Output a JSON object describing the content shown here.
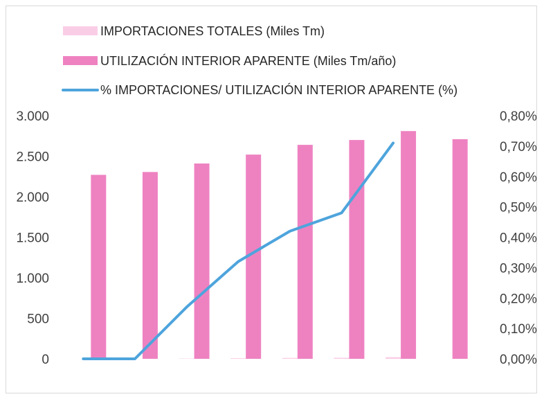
{
  "chart_data": {
    "type": "bar+line",
    "title": "",
    "categories": [
      "",
      "",
      "",
      "",
      "",
      "",
      "",
      ""
    ],
    "series": [
      {
        "name": "IMPORTACIONES TOTALES (Miles Tm)",
        "type": "bar",
        "axis": "left",
        "color": "#f9cde5",
        "values": [
          0,
          0,
          4,
          8,
          11,
          13,
          20,
          0
        ]
      },
      {
        "name": "UTILIZACIÓN INTERIOR APARENTE (Miles Tm/año)",
        "type": "bar",
        "axis": "left",
        "color": "#ee82c1",
        "values": [
          2270,
          2305,
          2410,
          2520,
          2640,
          2700,
          2810,
          2710
        ]
      },
      {
        "name": "% IMPORTACIONES/ UTILIZACIÓN INTERIOR APARENTE (%)",
        "type": "line",
        "axis": "right",
        "color": "#4ea4dc",
        "values": [
          0.0,
          0.0,
          0.17,
          0.32,
          0.42,
          0.48,
          0.71,
          null
        ]
      }
    ],
    "y_left": {
      "min": 0,
      "max": 3000,
      "ticks": [
        "0",
        "500",
        "1.000",
        "1.500",
        "2.000",
        "2.500",
        "3.000"
      ],
      "tick_values": [
        0,
        500,
        1000,
        1500,
        2000,
        2500,
        3000
      ]
    },
    "y_right": {
      "min": 0,
      "max": 0.8,
      "ticks": [
        "0,00%",
        "0,10%",
        "0,20%",
        "0,30%",
        "0,40%",
        "0,50%",
        "0,60%",
        "0,70%",
        "0,80%"
      ],
      "tick_values": [
        0,
        0.1,
        0.2,
        0.3,
        0.4,
        0.5,
        0.6,
        0.7,
        0.8
      ]
    },
    "grid": false,
    "legend_position": "top-left"
  }
}
